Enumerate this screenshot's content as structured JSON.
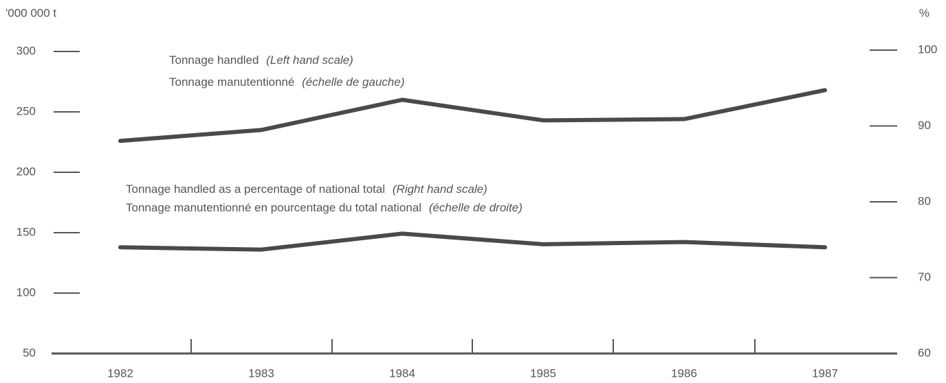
{
  "chart_data": {
    "type": "line",
    "y_unit": "'000 000 t",
    "y2_unit": "%",
    "categories": [
      "1982",
      "1983",
      "1984",
      "1985",
      "1986",
      "1987"
    ],
    "series": [
      {
        "name": "Tonnage handled",
        "name_note": "(Left hand scale)",
        "name_fr": "Tonnage manutentionné",
        "name_fr_note": "(échelle de gauche)",
        "color": "#4a4a4a",
        "values": [
          226,
          235,
          260,
          243,
          244,
          268
        ]
      },
      {
        "name": "Tonnage handled as a percentage of national total",
        "name_note": "(Right hand scale)",
        "name_fr": "Tonnage manutentionné en pourcentage du total national",
        "name_fr_note": "(échelle de droite)",
        "color": "#4a4a4a",
        "axis": "y2",
        "values": [
          74,
          73.7,
          75.8,
          74.4,
          74.7,
          74
        ]
      }
    ],
    "ylim": [
      50,
      300
    ],
    "yticks": [
      50,
      100,
      150,
      200,
      250,
      300
    ],
    "y2lim": [
      60,
      100
    ],
    "y2ticks": [
      60,
      70,
      80,
      90,
      100
    ]
  }
}
